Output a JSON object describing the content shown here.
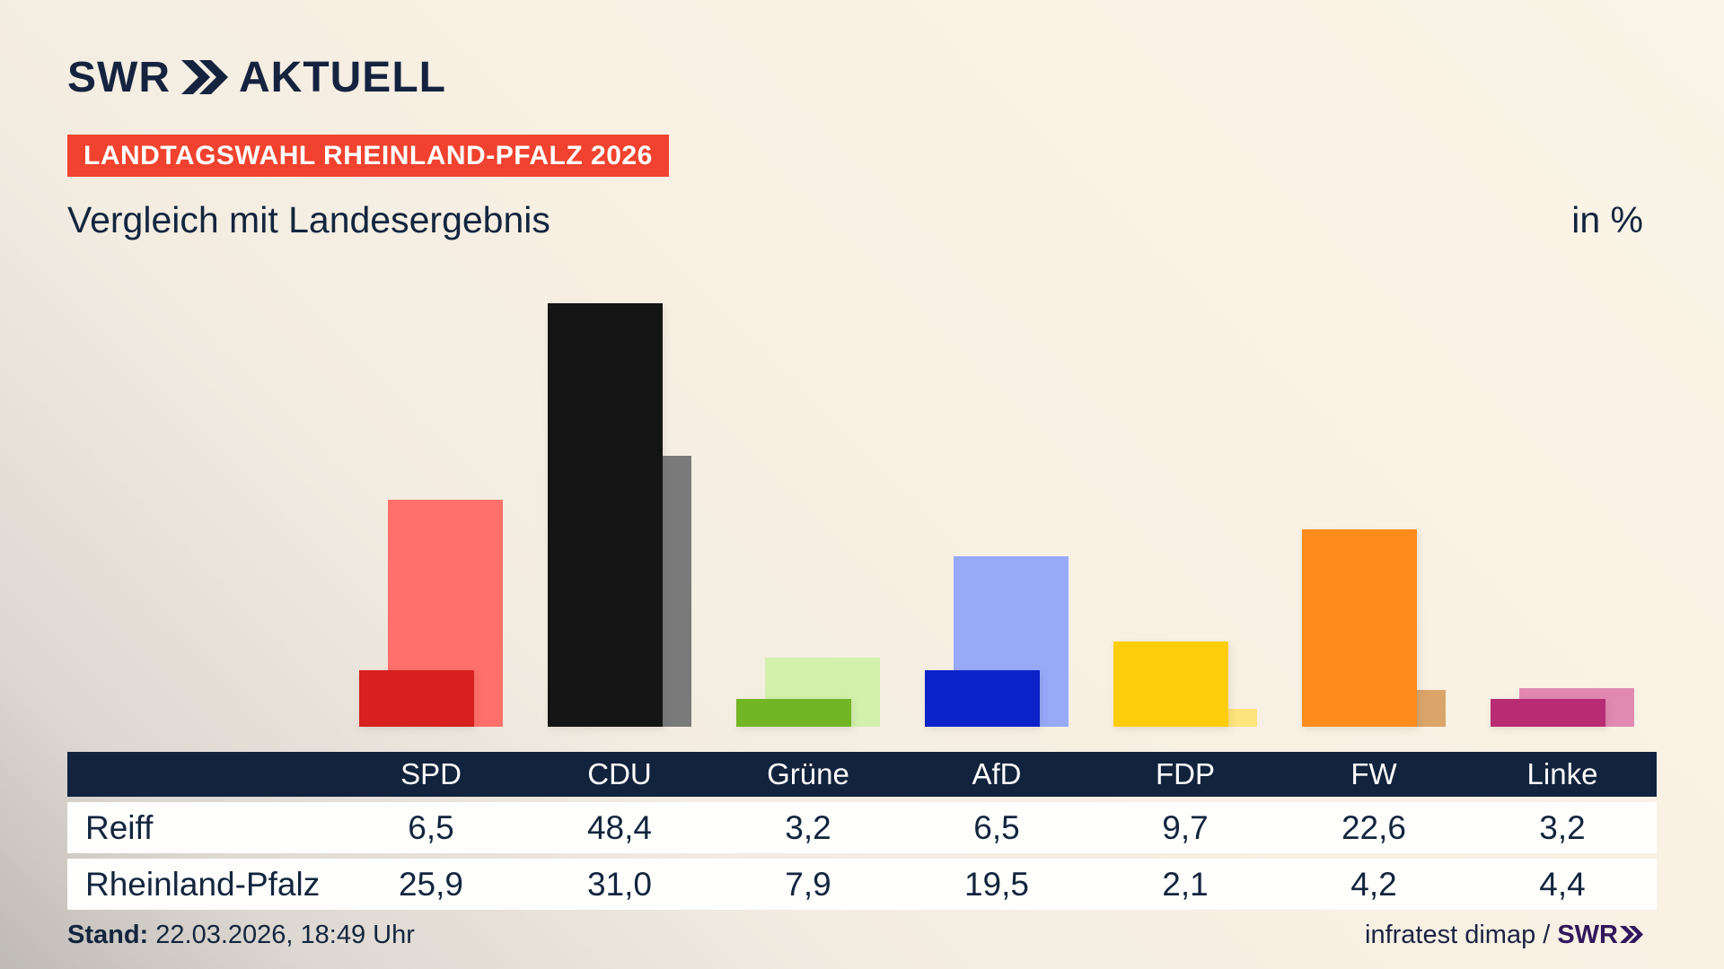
{
  "header": {
    "logo_swr": "SWR",
    "logo_aktuell": "AKTUELL",
    "badge": "LANDTAGSWAHL RHEINLAND-PFALZ 2026",
    "title": "Vergleich mit Landesergebnis",
    "unit_label": "in %"
  },
  "colors": {
    "badge_red": "#f0422e",
    "navy_text": "#13253e",
    "table_header_bg": "#12233d",
    "brand_purple": "#32175c",
    "background_cream": "#f8f0e3",
    "background_gray": "#b6b2ae"
  },
  "chart_data": {
    "type": "bar",
    "title": "Vergleich mit Landesergebnis",
    "ylabel": "in %",
    "ylim": [
      0,
      50
    ],
    "grid": false,
    "axes_hidden": true,
    "legend_position": "table-below",
    "categories": [
      "SPD",
      "CDU",
      "Grüne",
      "AfD",
      "FDP",
      "FW",
      "Linke"
    ],
    "series": [
      {
        "name": "Reiff",
        "values": [
          6.5,
          48.4,
          3.2,
          6.5,
          9.7,
          22.6,
          3.2
        ]
      },
      {
        "name": "Rheinland-Pfalz",
        "values": [
          25.9,
          31.0,
          7.9,
          19.5,
          2.1,
          4.2,
          4.4
        ]
      }
    ],
    "party_colors": [
      {
        "name": "SPD",
        "front": "#d7201f",
        "back": "#fe7069"
      },
      {
        "name": "CDU",
        "front": "#141414",
        "back": "#7a7a7a"
      },
      {
        "name": "Grüne",
        "front": "#72b626",
        "back": "#d3f0ad"
      },
      {
        "name": "AfD",
        "front": "#0a23c8",
        "back": "#98a9f8"
      },
      {
        "name": "FDP",
        "front": "#fecd0b",
        "back": "#fee47c"
      },
      {
        "name": "FW",
        "front": "#fe8c1d",
        "back": "#dba569"
      },
      {
        "name": "Linke",
        "front": "#b72c72",
        "back": "#e289b3"
      }
    ]
  },
  "table": {
    "columns": [
      "SPD",
      "CDU",
      "Grüne",
      "AfD",
      "FDP",
      "FW",
      "Linke"
    ],
    "rows": [
      {
        "label": "Reiff",
        "values": [
          "6,5",
          "48,4",
          "3,2",
          "6,5",
          "9,7",
          "22,6",
          "3,2"
        ]
      },
      {
        "label": "Rheinland-Pfalz",
        "values": [
          "25,9",
          "31,0",
          "7,9",
          "19,5",
          "2,1",
          "4,2",
          "4,4"
        ]
      }
    ]
  },
  "footer": {
    "stand_label": "Stand:",
    "stand_value": "22.03.2026, 18:49 Uhr",
    "source": "infratest dimap /",
    "source_brand": "SWR"
  }
}
